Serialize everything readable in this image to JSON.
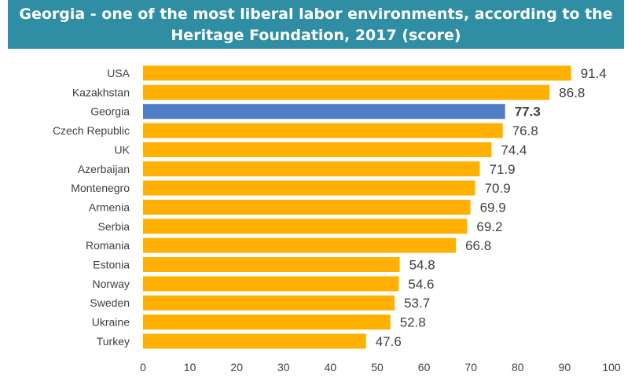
{
  "chart_data": {
    "type": "bar",
    "orientation": "horizontal",
    "title_line1": "Georgia - one of the most liberal labor environments, according to the",
    "title_line2": "Heritage Foundation, 2017 (score)",
    "categories": [
      "USA",
      "Kazakhstan",
      "Georgia",
      "Czech Republic",
      "UK",
      "Azerbaijan",
      "Montenegro",
      "Armenia",
      "Serbia",
      "Romania",
      "Estonia",
      "Norway",
      "Sweden",
      "Ukraine",
      "Turkey"
    ],
    "values": [
      91.4,
      86.8,
      77.3,
      76.8,
      74.4,
      71.9,
      70.9,
      69.9,
      69.2,
      66.8,
      54.8,
      54.6,
      53.7,
      52.8,
      47.6
    ],
    "value_labels": [
      "91.4",
      "86.8",
      "77.3",
      "76.8",
      "74.4",
      "71.9",
      "70.9",
      "69.9",
      "69.2",
      "66.8",
      "54.8",
      "54.6",
      "53.7",
      "52.8",
      "47.6"
    ],
    "highlight": "Georgia",
    "xlim": [
      0,
      100
    ],
    "xticks": [
      0,
      10,
      20,
      30,
      40,
      50,
      60,
      70,
      80,
      90,
      100
    ],
    "grid": false,
    "legend": "none",
    "colors": {
      "bar": "#ffb000",
      "highlight": "#4f7ec4",
      "title_bg": "#2f8ea3",
      "title_text": "#ffffff",
      "text": "#404040"
    }
  }
}
